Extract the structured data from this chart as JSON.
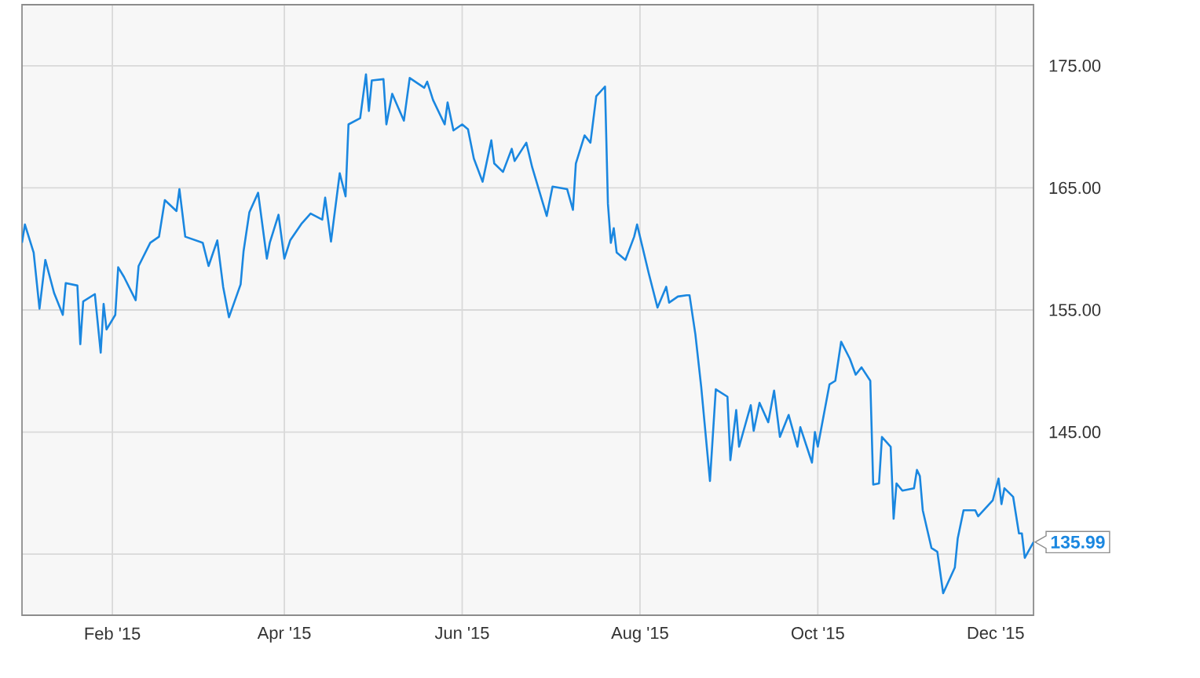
{
  "chart_data": {
    "type": "line",
    "x": [
      "2015-01-01",
      "2015-01-02",
      "2015-01-05",
      "2015-01-07",
      "2015-01-09",
      "2015-01-12",
      "2015-01-15",
      "2015-01-16",
      "2015-01-20",
      "2015-01-21",
      "2015-01-22",
      "2015-01-26",
      "2015-01-28",
      "2015-01-29",
      "2015-01-30",
      "2015-02-02",
      "2015-02-03",
      "2015-02-05",
      "2015-02-09",
      "2015-02-10",
      "2015-02-14",
      "2015-02-17",
      "2015-02-19",
      "2015-02-23",
      "2015-02-24",
      "2015-02-26",
      "2015-03-04",
      "2015-03-06",
      "2015-03-09",
      "2015-03-11",
      "2015-03-13",
      "2015-03-17",
      "2015-03-18",
      "2015-03-20",
      "2015-03-23",
      "2015-03-26",
      "2015-03-27",
      "2015-03-30",
      "2015-04-01",
      "2015-04-03",
      "2015-04-07",
      "2015-04-10",
      "2015-04-14",
      "2015-04-15",
      "2015-04-17",
      "2015-04-20",
      "2015-04-22",
      "2015-04-23",
      "2015-04-27",
      "2015-04-29",
      "2015-04-30",
      "2015-05-01",
      "2015-05-05",
      "2015-05-06",
      "2015-05-08",
      "2015-05-12",
      "2015-05-14",
      "2015-05-19",
      "2015-05-20",
      "2015-05-22",
      "2015-05-26",
      "2015-05-27",
      "2015-05-29",
      "2015-06-01",
      "2015-06-03",
      "2015-06-05",
      "2015-06-08",
      "2015-06-11",
      "2015-06-12",
      "2015-06-15",
      "2015-06-18",
      "2015-06-19",
      "2015-06-23",
      "2015-06-25",
      "2015-06-30",
      "2015-07-02",
      "2015-07-07",
      "2015-07-09",
      "2015-07-10",
      "2015-07-13",
      "2015-07-15",
      "2015-07-17",
      "2015-07-20",
      "2015-07-21",
      "2015-07-22",
      "2015-07-23",
      "2015-07-24",
      "2015-07-27",
      "2015-07-30",
      "2015-07-31",
      "2015-08-04",
      "2015-08-07",
      "2015-08-10",
      "2015-08-11",
      "2015-08-14",
      "2015-08-17",
      "2015-08-18",
      "2015-08-20",
      "2015-08-22",
      "2015-08-25",
      "2015-08-27",
      "2015-08-31",
      "2015-09-01",
      "2015-09-03",
      "2015-09-04",
      "2015-09-08",
      "2015-09-09",
      "2015-09-11",
      "2015-09-14",
      "2015-09-16",
      "2015-09-18",
      "2015-09-21",
      "2015-09-24",
      "2015-09-25",
      "2015-09-29",
      "2015-09-30",
      "2015-10-01",
      "2015-10-05",
      "2015-10-07",
      "2015-10-09",
      "2015-10-12",
      "2015-10-14",
      "2015-10-16",
      "2015-10-19",
      "2015-10-20",
      "2015-10-22",
      "2015-10-23",
      "2015-10-26",
      "2015-10-27",
      "2015-10-28",
      "2015-10-30",
      "2015-11-03",
      "2015-11-04",
      "2015-11-05",
      "2015-11-06",
      "2015-11-09",
      "2015-11-11",
      "2015-11-13",
      "2015-11-17",
      "2015-11-18",
      "2015-11-20",
      "2015-11-24",
      "2015-11-25",
      "2015-11-30",
      "2015-12-02",
      "2015-12-03",
      "2015-12-04",
      "2015-12-07",
      "2015-12-09",
      "2015-12-10",
      "2015-12-11",
      "2015-12-14"
    ],
    "series": [
      {
        "color": "#1a87e0",
        "values": [
          160.5,
          162.0,
          159.7,
          155.1,
          159.1,
          156.4,
          154.6,
          157.2,
          157.0,
          152.2,
          155.7,
          156.3,
          151.5,
          155.5,
          153.4,
          154.6,
          158.5,
          157.7,
          155.8,
          158.6,
          160.5,
          161.0,
          164.0,
          163.1,
          164.9,
          161.0,
          160.5,
          158.6,
          160.7,
          156.9,
          154.4,
          157.1,
          159.8,
          163.0,
          164.6,
          159.2,
          160.5,
          162.8,
          159.2,
          160.7,
          162.1,
          162.9,
          162.4,
          164.2,
          160.6,
          166.2,
          164.3,
          170.2,
          170.7,
          174.3,
          171.3,
          173.8,
          173.9,
          170.2,
          172.7,
          170.5,
          174.0,
          173.2,
          173.7,
          172.2,
          170.2,
          172.0,
          169.7,
          170.2,
          169.8,
          167.4,
          165.5,
          168.9,
          167.0,
          166.3,
          168.2,
          167.2,
          168.7,
          166.7,
          162.7,
          165.1,
          164.9,
          163.2,
          167.0,
          169.3,
          168.7,
          172.5,
          173.3,
          163.7,
          160.5,
          161.7,
          159.7,
          159.1,
          161.0,
          162.0,
          158.0,
          155.2,
          156.9,
          155.6,
          156.1,
          156.2,
          156.2,
          153.0,
          148.7,
          141.0,
          148.5,
          147.9,
          142.7,
          146.8,
          143.8,
          147.2,
          145.1,
          147.4,
          145.8,
          148.4,
          144.6,
          146.4,
          143.8,
          145.4,
          142.5,
          145.0,
          143.8,
          148.9,
          149.2,
          152.4,
          151.0,
          149.7,
          150.3,
          149.2,
          140.7,
          140.8,
          144.6,
          143.8,
          137.9,
          140.8,
          140.2,
          140.4,
          141.9,
          141.4,
          138.6,
          135.5,
          135.2,
          131.8,
          133.9,
          136.3,
          138.6,
          138.6,
          138.1,
          139.4,
          141.2,
          139.1,
          140.4,
          139.7,
          136.7,
          136.7,
          134.7,
          135.99
        ]
      }
    ],
    "xlim": [
      "2015-01-01",
      "2015-12-14"
    ],
    "xticks": [
      {
        "value": "2015-02-01",
        "label": "Feb '15"
      },
      {
        "value": "2015-04-01",
        "label": "Apr '15"
      },
      {
        "value": "2015-06-01",
        "label": "Jun '15"
      },
      {
        "value": "2015-08-01",
        "label": "Aug '15"
      },
      {
        "value": "2015-10-01",
        "label": "Oct '15"
      },
      {
        "value": "2015-12-01",
        "label": "Dec '15"
      }
    ],
    "ylim": [
      130,
      180
    ],
    "yticks": [
      {
        "value": 135,
        "label": null
      },
      {
        "value": 145,
        "label": "145.00"
      },
      {
        "value": 155,
        "label": "155.00"
      },
      {
        "value": 165,
        "label": "165.00"
      },
      {
        "value": 175,
        "label": "175.00"
      }
    ],
    "grid": true,
    "annotations": [
      {
        "text": "135.99",
        "x": "2015-12-14",
        "y": 135.99
      }
    ]
  }
}
